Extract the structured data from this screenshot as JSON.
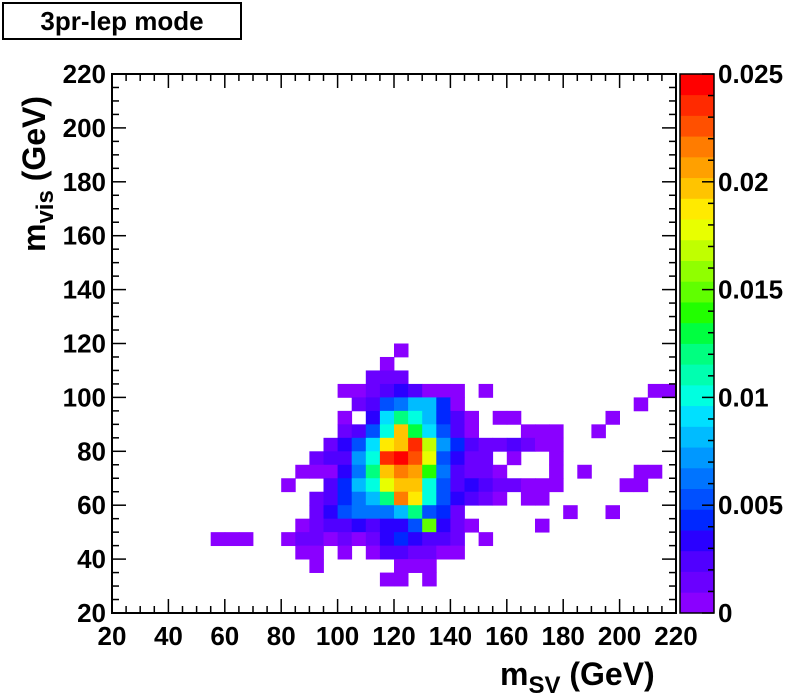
{
  "title": "3pr-lep mode",
  "chart_data": {
    "type": "heatmap",
    "title": "3pr-lep mode",
    "xlabel": {
      "main": "m",
      "sub": "SV",
      "unit": " (GeV)"
    },
    "ylabel": {
      "main": "m",
      "sub": "vis",
      "unit": " (GeV)"
    },
    "xlim": [
      20,
      220
    ],
    "ylim": [
      20,
      220
    ],
    "bin_width": 5,
    "x_ticks": [
      "20",
      "40",
      "60",
      "80",
      "100",
      "120",
      "140",
      "160",
      "180",
      "200",
      "220"
    ],
    "y_ticks": [
      "20",
      "40",
      "60",
      "80",
      "100",
      "120",
      "140",
      "160",
      "180",
      "200",
      "220"
    ],
    "z_range": [
      0,
      0.025
    ],
    "z_ticks": [
      "0",
      "0.005",
      "0.01",
      "0.015",
      "0.02",
      "0.025"
    ],
    "palette": [
      "#8a00ff",
      "#6a00ff",
      "#5000ff",
      "#2a00ff",
      "#0028ff",
      "#0050ff",
      "#0074ff",
      "#0098ff",
      "#00bcff",
      "#00e0ff",
      "#00ffe0",
      "#00ffb0",
      "#00ff80",
      "#00ff40",
      "#22ff00",
      "#60ff00",
      "#90ff00",
      "#c0ff00",
      "#e8ff00",
      "#ffea00",
      "#ffc400",
      "#ffa000",
      "#ff7c00",
      "#ff5000",
      "#ff2a00",
      "#ff0000"
    ],
    "bins": [
      [
        120,
        115,
        0.0006
      ],
      [
        115,
        110,
        0.0006
      ],
      [
        110,
        105,
        0.001
      ],
      [
        115,
        105,
        0.001
      ],
      [
        120,
        105,
        0.001
      ],
      [
        100,
        100,
        0.0008
      ],
      [
        105,
        100,
        0.0008
      ],
      [
        110,
        100,
        0.001
      ],
      [
        115,
        100,
        0.002
      ],
      [
        120,
        100,
        0.003
      ],
      [
        125,
        100,
        0.002
      ],
      [
        130,
        100,
        0.0006
      ],
      [
        135,
        100,
        0.0008
      ],
      [
        140,
        100,
        0.0006
      ],
      [
        150,
        100,
        0.0006
      ],
      [
        210,
        100,
        0.0008
      ],
      [
        215,
        100,
        0.0008
      ],
      [
        105,
        95,
        0.001
      ],
      [
        110,
        95,
        0.002
      ],
      [
        115,
        95,
        0.005
      ],
      [
        120,
        95,
        0.0065
      ],
      [
        125,
        95,
        0.0085
      ],
      [
        130,
        95,
        0.0085
      ],
      [
        135,
        95,
        0.004
      ],
      [
        140,
        95,
        0.0006
      ],
      [
        205,
        95,
        0.0008
      ],
      [
        100,
        90,
        0.0008
      ],
      [
        110,
        90,
        0.003
      ],
      [
        115,
        90,
        0.009
      ],
      [
        120,
        90,
        0.012
      ],
      [
        125,
        90,
        0.01
      ],
      [
        130,
        90,
        0.008
      ],
      [
        135,
        90,
        0.004
      ],
      [
        140,
        90,
        0.002
      ],
      [
        145,
        90,
        0.0006
      ],
      [
        155,
        90,
        0.0008
      ],
      [
        160,
        90,
        0.0008
      ],
      [
        195,
        90,
        0.0006
      ],
      [
        100,
        85,
        0.001
      ],
      [
        105,
        85,
        0.002
      ],
      [
        110,
        85,
        0.005
      ],
      [
        115,
        85,
        0.01
      ],
      [
        120,
        85,
        0.02
      ],
      [
        125,
        85,
        0.013
      ],
      [
        130,
        85,
        0.009
      ],
      [
        135,
        85,
        0.005
      ],
      [
        140,
        85,
        0.002
      ],
      [
        145,
        85,
        0.0008
      ],
      [
        165,
        85,
        0.0006
      ],
      [
        170,
        85,
        0.0006
      ],
      [
        175,
        85,
        0.0006
      ],
      [
        190,
        85,
        0.0008
      ],
      [
        95,
        80,
        0.001
      ],
      [
        100,
        80,
        0.003
      ],
      [
        105,
        80,
        0.005
      ],
      [
        110,
        80,
        0.009
      ],
      [
        115,
        80,
        0.019
      ],
      [
        120,
        80,
        0.02
      ],
      [
        125,
        80,
        0.024
      ],
      [
        130,
        80,
        0.017
      ],
      [
        135,
        80,
        0.007
      ],
      [
        140,
        80,
        0.004
      ],
      [
        145,
        80,
        0.002
      ],
      [
        150,
        80,
        0.001
      ],
      [
        155,
        80,
        0.001
      ],
      [
        160,
        80,
        0.002
      ],
      [
        165,
        80,
        0.001
      ],
      [
        170,
        80,
        0.0008
      ],
      [
        175,
        80,
        0.0006
      ],
      [
        90,
        75,
        0.001
      ],
      [
        95,
        75,
        0.002
      ],
      [
        100,
        75,
        0.002
      ],
      [
        105,
        75,
        0.007
      ],
      [
        110,
        75,
        0.01
      ],
      [
        115,
        75,
        0.024
      ],
      [
        120,
        75,
        0.025
      ],
      [
        125,
        75,
        0.023
      ],
      [
        130,
        75,
        0.018
      ],
      [
        135,
        75,
        0.005
      ],
      [
        140,
        75,
        0.003
      ],
      [
        145,
        75,
        0.001
      ],
      [
        150,
        75,
        0.001
      ],
      [
        160,
        75,
        0.0008
      ],
      [
        175,
        75,
        0.0006
      ],
      [
        85,
        70,
        0.0006
      ],
      [
        90,
        70,
        0.0006
      ],
      [
        95,
        70,
        0.0008
      ],
      [
        100,
        70,
        0.003
      ],
      [
        105,
        70,
        0.006
      ],
      [
        110,
        70,
        0.012
      ],
      [
        115,
        70,
        0.02
      ],
      [
        120,
        70,
        0.022
      ],
      [
        125,
        70,
        0.021
      ],
      [
        130,
        70,
        0.014
      ],
      [
        135,
        70,
        0.006
      ],
      [
        140,
        70,
        0.002
      ],
      [
        145,
        70,
        0.001
      ],
      [
        150,
        70,
        0.001
      ],
      [
        155,
        70,
        0.0008
      ],
      [
        175,
        70,
        0.0006
      ],
      [
        185,
        70,
        0.0006
      ],
      [
        205,
        70,
        0.0006
      ],
      [
        210,
        70,
        0.0006
      ],
      [
        80,
        65,
        0.0006
      ],
      [
        95,
        65,
        0.002
      ],
      [
        100,
        65,
        0.004
      ],
      [
        105,
        65,
        0.008
      ],
      [
        110,
        65,
        0.01
      ],
      [
        115,
        65,
        0.018
      ],
      [
        120,
        65,
        0.02
      ],
      [
        125,
        65,
        0.02
      ],
      [
        130,
        65,
        0.01
      ],
      [
        135,
        65,
        0.005
      ],
      [
        140,
        65,
        0.002
      ],
      [
        145,
        65,
        0.003
      ],
      [
        150,
        65,
        0.002
      ],
      [
        155,
        65,
        0.001
      ],
      [
        160,
        65,
        0.001
      ],
      [
        165,
        65,
        0.0006
      ],
      [
        170,
        65,
        0.0008
      ],
      [
        175,
        65,
        0.0006
      ],
      [
        200,
        65,
        0.0006
      ],
      [
        205,
        65,
        0.0006
      ],
      [
        90,
        60,
        0.001
      ],
      [
        95,
        60,
        0.002
      ],
      [
        100,
        60,
        0.004
      ],
      [
        105,
        60,
        0.006
      ],
      [
        110,
        60,
        0.008
      ],
      [
        115,
        60,
        0.012
      ],
      [
        120,
        60,
        0.022
      ],
      [
        125,
        60,
        0.019
      ],
      [
        130,
        60,
        0.01
      ],
      [
        135,
        60,
        0.005
      ],
      [
        140,
        60,
        0.003
      ],
      [
        145,
        60,
        0.002
      ],
      [
        150,
        60,
        0.001
      ],
      [
        155,
        60,
        0.0008
      ],
      [
        165,
        60,
        0.0008
      ],
      [
        170,
        60,
        0.0006
      ],
      [
        90,
        55,
        0.001
      ],
      [
        95,
        55,
        0.003
      ],
      [
        100,
        55,
        0.005
      ],
      [
        105,
        55,
        0.006
      ],
      [
        110,
        55,
        0.006
      ],
      [
        115,
        55,
        0.006
      ],
      [
        120,
        55,
        0.008
      ],
      [
        125,
        55,
        0.012
      ],
      [
        130,
        55,
        0.005
      ],
      [
        135,
        55,
        0.004
      ],
      [
        140,
        55,
        0.001
      ],
      [
        180,
        55,
        0.0006
      ],
      [
        195,
        55,
        0.0006
      ],
      [
        85,
        50,
        0.0008
      ],
      [
        90,
        50,
        0.001
      ],
      [
        95,
        50,
        0.002
      ],
      [
        100,
        50,
        0.002
      ],
      [
        105,
        50,
        0.003
      ],
      [
        110,
        50,
        0.002
      ],
      [
        115,
        50,
        0.003
      ],
      [
        120,
        50,
        0.003
      ],
      [
        125,
        50,
        0.005
      ],
      [
        130,
        50,
        0.015
      ],
      [
        135,
        50,
        0.003
      ],
      [
        140,
        50,
        0.001
      ],
      [
        145,
        50,
        0.0006
      ],
      [
        170,
        50,
        0.0008
      ],
      [
        55,
        45,
        0.0006
      ],
      [
        60,
        45,
        0.0006
      ],
      [
        65,
        45,
        0.0006
      ],
      [
        80,
        45,
        0.0006
      ],
      [
        85,
        45,
        0.001
      ],
      [
        90,
        45,
        0.001
      ],
      [
        95,
        45,
        0.0006
      ],
      [
        100,
        45,
        0.001
      ],
      [
        105,
        45,
        0.0006
      ],
      [
        110,
        45,
        0.001
      ],
      [
        115,
        45,
        0.003
      ],
      [
        120,
        45,
        0.004
      ],
      [
        125,
        45,
        0.003
      ],
      [
        130,
        45,
        0.002
      ],
      [
        135,
        45,
        0.002
      ],
      [
        140,
        45,
        0.001
      ],
      [
        150,
        45,
        0.0006
      ],
      [
        85,
        40,
        0.0006
      ],
      [
        90,
        40,
        0.0006
      ],
      [
        100,
        40,
        0.0006
      ],
      [
        110,
        40,
        0.0006
      ],
      [
        115,
        40,
        0.002
      ],
      [
        120,
        40,
        0.002
      ],
      [
        125,
        40,
        0.001
      ],
      [
        130,
        40,
        0.001
      ],
      [
        135,
        40,
        0.0006
      ],
      [
        140,
        40,
        0.0006
      ],
      [
        90,
        35,
        0.0006
      ],
      [
        120,
        35,
        0.0006
      ],
      [
        125,
        35,
        0.0006
      ],
      [
        130,
        35,
        0.0006
      ],
      [
        115,
        30,
        0.0006
      ],
      [
        120,
        30,
        0.0006
      ],
      [
        130,
        30,
        0.0006
      ]
    ]
  }
}
